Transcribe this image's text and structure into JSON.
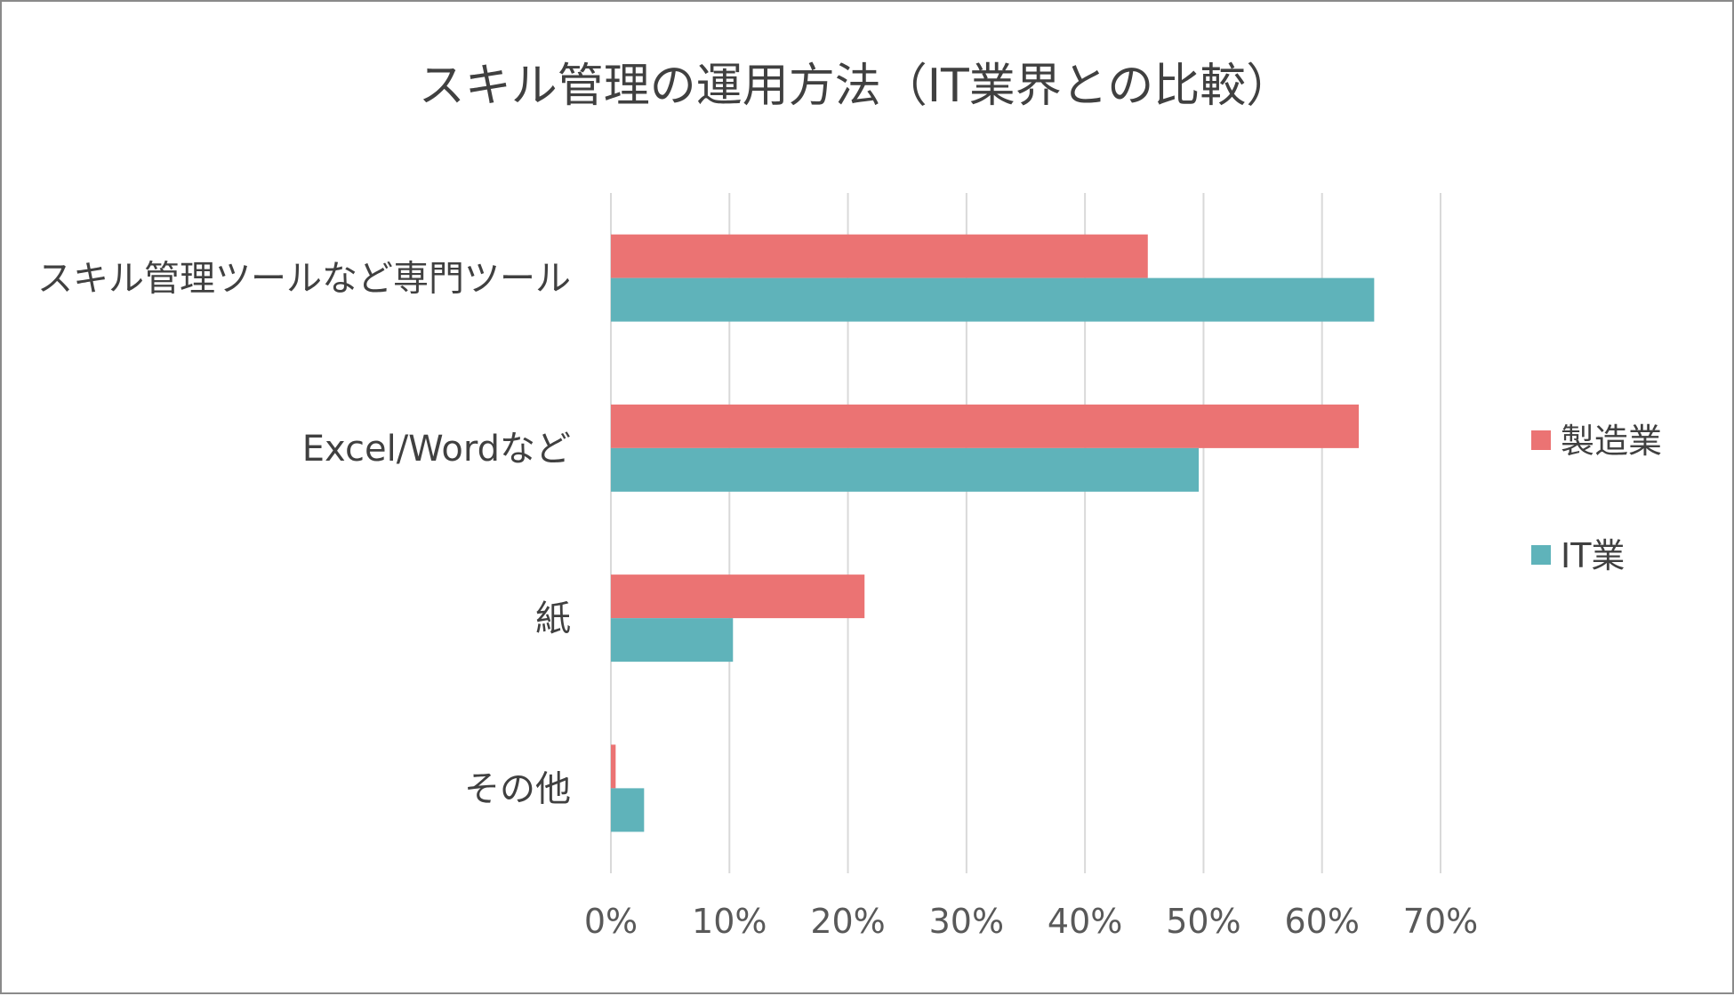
{
  "chart_data": {
    "type": "bar",
    "orientation": "horizontal",
    "title": "スキル管理の運用方法（IT業界との比較）",
    "categories": [
      "スキル管理ツールなど専門ツール",
      "Excel/Wordなど",
      "紙",
      "その他"
    ],
    "series": [
      {
        "name": "製造業",
        "color": "#eb7373",
        "values": [
          45.3,
          63.1,
          21.4,
          0.4
        ]
      },
      {
        "name": "IT業",
        "color": "#5fb3ba",
        "values": [
          64.4,
          49.6,
          10.3,
          2.8
        ]
      }
    ],
    "xlim": [
      0,
      70
    ],
    "x_ticks": [
      "0%",
      "10%",
      "20%",
      "30%",
      "40%",
      "50%",
      "60%",
      "70%"
    ],
    "grid": true,
    "legend_position": "right"
  }
}
